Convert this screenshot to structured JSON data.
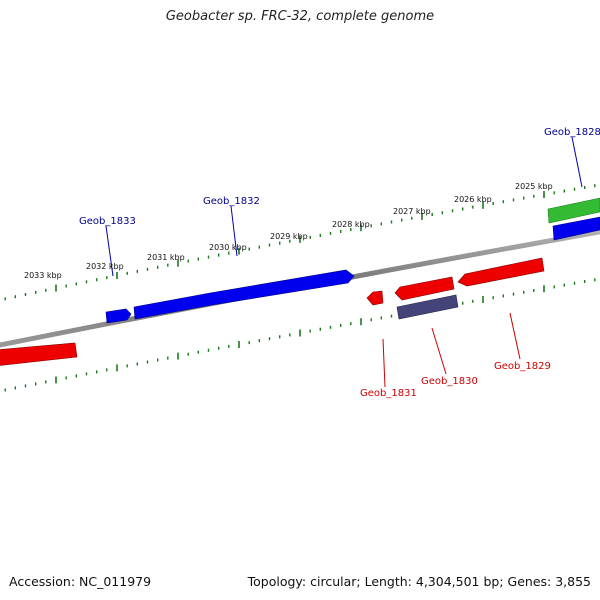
{
  "title": "Geobacter sp. FRC-32, complete genome",
  "accession": "Accession: NC_011979",
  "genome_stats": "Topology: circular; Length: 4,304,501 bp; Genes: 3,855",
  "colors": {
    "backbone": "#7a7a7a",
    "tick_track": "#1a7a1a",
    "forward_gene": "#0000ee",
    "reverse_gene": "#ee0000",
    "rna_gene": "#33bb33",
    "other_gene": "#44447a",
    "forward_label": "#00008b",
    "reverse_label": "#cc0000"
  },
  "scale_ticks": [
    {
      "label": "2033 kbp"
    },
    {
      "label": "2032 kbp"
    },
    {
      "label": "2031 kbp"
    },
    {
      "label": "2030 kbp"
    },
    {
      "label": "2029 kbp"
    },
    {
      "label": "2028 kbp"
    },
    {
      "label": "2027 kbp"
    },
    {
      "label": "2026 kbp"
    },
    {
      "label": "2025 kbp"
    }
  ],
  "gene_labels": [
    {
      "name": "Geob_1833",
      "strand": "forward"
    },
    {
      "name": "Geob_1832",
      "strand": "forward"
    },
    {
      "name": "Geob_1828",
      "strand": "forward"
    },
    {
      "name": "Geob_1831",
      "strand": "reverse"
    },
    {
      "name": "Geob_1830",
      "strand": "reverse"
    },
    {
      "name": "Geob_1829",
      "strand": "reverse"
    }
  ]
}
